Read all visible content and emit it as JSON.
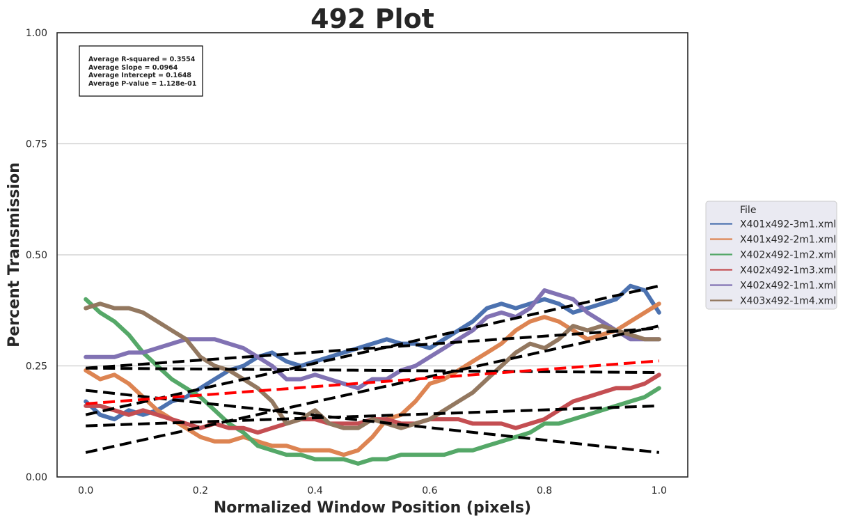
{
  "chart_data": {
    "type": "line",
    "title": "492 Plot",
    "xlabel": "Normalized Window Position (pixels)",
    "ylabel": "Percent Transmission",
    "xlim": [
      -0.05,
      1.05
    ],
    "ylim": [
      0.0,
      1.0
    ],
    "x_ticks": [
      "0.0",
      "0.2",
      "0.4",
      "0.6",
      "0.8",
      "1.0"
    ],
    "y_ticks": [
      "0.00",
      "0.25",
      "0.50",
      "0.75",
      "1.00"
    ],
    "grid": "horizontal",
    "legend_title": "File",
    "legend_position": "right",
    "stats_box": [
      "Average R-squared = 0.3554",
      "Average Slope = 0.0964",
      "Average Intercept = 0.1648",
      "Average P-value = 1.128e-01"
    ],
    "series": [
      {
        "name": "X401x492-3m1.xml",
        "color": "#4c72b0",
        "x": [
          0,
          0.025,
          0.05,
          0.075,
          0.1,
          0.125,
          0.15,
          0.175,
          0.2,
          0.225,
          0.25,
          0.275,
          0.3,
          0.325,
          0.35,
          0.375,
          0.4,
          0.425,
          0.45,
          0.475,
          0.5,
          0.525,
          0.55,
          0.575,
          0.6,
          0.625,
          0.65,
          0.675,
          0.7,
          0.725,
          0.75,
          0.775,
          0.8,
          0.825,
          0.85,
          0.875,
          0.9,
          0.925,
          0.95,
          0.975,
          1.0
        ],
        "y": [
          0.17,
          0.14,
          0.13,
          0.15,
          0.14,
          0.15,
          0.17,
          0.18,
          0.2,
          0.22,
          0.24,
          0.25,
          0.27,
          0.28,
          0.26,
          0.25,
          0.26,
          0.27,
          0.28,
          0.29,
          0.3,
          0.31,
          0.3,
          0.3,
          0.29,
          0.31,
          0.33,
          0.35,
          0.38,
          0.39,
          0.38,
          0.39,
          0.4,
          0.39,
          0.37,
          0.38,
          0.39,
          0.4,
          0.43,
          0.42,
          0.37
        ]
      },
      {
        "name": "X401x492-2m1.xml",
        "color": "#dd8452",
        "x": [
          0,
          0.025,
          0.05,
          0.075,
          0.1,
          0.125,
          0.15,
          0.175,
          0.2,
          0.225,
          0.25,
          0.275,
          0.3,
          0.325,
          0.35,
          0.375,
          0.4,
          0.425,
          0.45,
          0.475,
          0.5,
          0.525,
          0.55,
          0.575,
          0.6,
          0.625,
          0.65,
          0.675,
          0.7,
          0.725,
          0.75,
          0.775,
          0.8,
          0.825,
          0.85,
          0.875,
          0.9,
          0.925,
          0.95,
          0.975,
          1.0
        ],
        "y": [
          0.24,
          0.22,
          0.23,
          0.21,
          0.18,
          0.15,
          0.13,
          0.11,
          0.09,
          0.08,
          0.08,
          0.09,
          0.08,
          0.07,
          0.07,
          0.06,
          0.06,
          0.06,
          0.05,
          0.06,
          0.09,
          0.13,
          0.14,
          0.17,
          0.21,
          0.22,
          0.24,
          0.26,
          0.28,
          0.3,
          0.33,
          0.35,
          0.36,
          0.35,
          0.33,
          0.31,
          0.32,
          0.33,
          0.35,
          0.37,
          0.39
        ]
      },
      {
        "name": "X402x492-1m2.xml",
        "color": "#55a868",
        "x": [
          0,
          0.025,
          0.05,
          0.075,
          0.1,
          0.125,
          0.15,
          0.175,
          0.2,
          0.225,
          0.25,
          0.275,
          0.3,
          0.325,
          0.35,
          0.375,
          0.4,
          0.425,
          0.45,
          0.475,
          0.5,
          0.525,
          0.55,
          0.575,
          0.6,
          0.625,
          0.65,
          0.675,
          0.7,
          0.725,
          0.75,
          0.775,
          0.8,
          0.825,
          0.85,
          0.875,
          0.9,
          0.925,
          0.95,
          0.975,
          1.0
        ],
        "y": [
          0.4,
          0.37,
          0.35,
          0.32,
          0.28,
          0.25,
          0.22,
          0.2,
          0.18,
          0.15,
          0.12,
          0.1,
          0.07,
          0.06,
          0.05,
          0.05,
          0.04,
          0.04,
          0.04,
          0.03,
          0.04,
          0.04,
          0.05,
          0.05,
          0.05,
          0.05,
          0.06,
          0.06,
          0.07,
          0.08,
          0.09,
          0.1,
          0.12,
          0.12,
          0.13,
          0.14,
          0.15,
          0.16,
          0.17,
          0.18,
          0.2
        ]
      },
      {
        "name": "X402x492-1m3.xml",
        "color": "#c44e52",
        "x": [
          0,
          0.025,
          0.05,
          0.075,
          0.1,
          0.125,
          0.15,
          0.175,
          0.2,
          0.225,
          0.25,
          0.275,
          0.3,
          0.325,
          0.35,
          0.375,
          0.4,
          0.425,
          0.45,
          0.475,
          0.5,
          0.525,
          0.55,
          0.575,
          0.6,
          0.625,
          0.65,
          0.675,
          0.7,
          0.725,
          0.75,
          0.775,
          0.8,
          0.825,
          0.85,
          0.875,
          0.9,
          0.925,
          0.95,
          0.975,
          1.0
        ],
        "y": [
          0.16,
          0.16,
          0.15,
          0.14,
          0.15,
          0.14,
          0.13,
          0.12,
          0.11,
          0.12,
          0.11,
          0.11,
          0.1,
          0.11,
          0.12,
          0.13,
          0.13,
          0.12,
          0.12,
          0.12,
          0.13,
          0.13,
          0.12,
          0.12,
          0.13,
          0.13,
          0.13,
          0.12,
          0.12,
          0.12,
          0.11,
          0.12,
          0.13,
          0.15,
          0.17,
          0.18,
          0.19,
          0.2,
          0.2,
          0.21,
          0.23
        ]
      },
      {
        "name": "X402x492-1m1.xml",
        "color": "#8172b3",
        "x": [
          0,
          0.025,
          0.05,
          0.075,
          0.1,
          0.125,
          0.15,
          0.175,
          0.2,
          0.225,
          0.25,
          0.275,
          0.3,
          0.325,
          0.35,
          0.375,
          0.4,
          0.425,
          0.45,
          0.475,
          0.5,
          0.525,
          0.55,
          0.575,
          0.6,
          0.625,
          0.65,
          0.675,
          0.7,
          0.725,
          0.75,
          0.775,
          0.8,
          0.825,
          0.85,
          0.875,
          0.9,
          0.925,
          0.95,
          0.975,
          1.0
        ],
        "y": [
          0.27,
          0.27,
          0.27,
          0.28,
          0.28,
          0.29,
          0.3,
          0.31,
          0.31,
          0.31,
          0.3,
          0.29,
          0.27,
          0.25,
          0.22,
          0.22,
          0.23,
          0.22,
          0.21,
          0.2,
          0.22,
          0.22,
          0.24,
          0.25,
          0.27,
          0.29,
          0.31,
          0.33,
          0.36,
          0.37,
          0.36,
          0.38,
          0.42,
          0.41,
          0.4,
          0.37,
          0.35,
          0.33,
          0.31,
          0.31,
          0.31
        ]
      },
      {
        "name": "X403x492-1m4.xml",
        "color": "#937860",
        "x": [
          0,
          0.025,
          0.05,
          0.075,
          0.1,
          0.125,
          0.15,
          0.175,
          0.2,
          0.225,
          0.25,
          0.275,
          0.3,
          0.325,
          0.35,
          0.375,
          0.4,
          0.425,
          0.45,
          0.475,
          0.5,
          0.525,
          0.55,
          0.575,
          0.6,
          0.625,
          0.65,
          0.675,
          0.7,
          0.725,
          0.75,
          0.775,
          0.8,
          0.825,
          0.85,
          0.875,
          0.9,
          0.925,
          0.95,
          0.975,
          1.0
        ],
        "y": [
          0.38,
          0.39,
          0.38,
          0.38,
          0.37,
          0.35,
          0.33,
          0.31,
          0.27,
          0.25,
          0.24,
          0.22,
          0.2,
          0.17,
          0.12,
          0.13,
          0.15,
          0.12,
          0.11,
          0.11,
          0.13,
          0.12,
          0.11,
          0.12,
          0.13,
          0.15,
          0.17,
          0.19,
          0.22,
          0.25,
          0.28,
          0.3,
          0.29,
          0.31,
          0.34,
          0.33,
          0.34,
          0.33,
          0.32,
          0.31,
          0.31
        ]
      }
    ],
    "fit_lines": [
      {
        "kind": "per-series",
        "color": "#000000",
        "x": [
          0,
          1
        ],
        "y": [
          0.14,
          0.43
        ]
      },
      {
        "kind": "per-series",
        "color": "#000000",
        "x": [
          0,
          1
        ],
        "y": [
          0.055,
          0.34
        ]
      },
      {
        "kind": "per-series",
        "color": "#000000",
        "x": [
          0,
          1
        ],
        "y": [
          0.195,
          0.055
        ]
      },
      {
        "kind": "per-series",
        "color": "#000000",
        "x": [
          0,
          1
        ],
        "y": [
          0.115,
          0.16
        ]
      },
      {
        "kind": "per-series",
        "color": "#000000",
        "x": [
          0,
          1
        ],
        "y": [
          0.245,
          0.335
        ]
      },
      {
        "kind": "per-series",
        "color": "#000000",
        "x": [
          0,
          1
        ],
        "y": [
          0.245,
          0.235
        ]
      },
      {
        "kind": "average",
        "color": "#ff0000",
        "x": [
          0,
          1
        ],
        "y": [
          0.1648,
          0.2612
        ]
      }
    ]
  }
}
